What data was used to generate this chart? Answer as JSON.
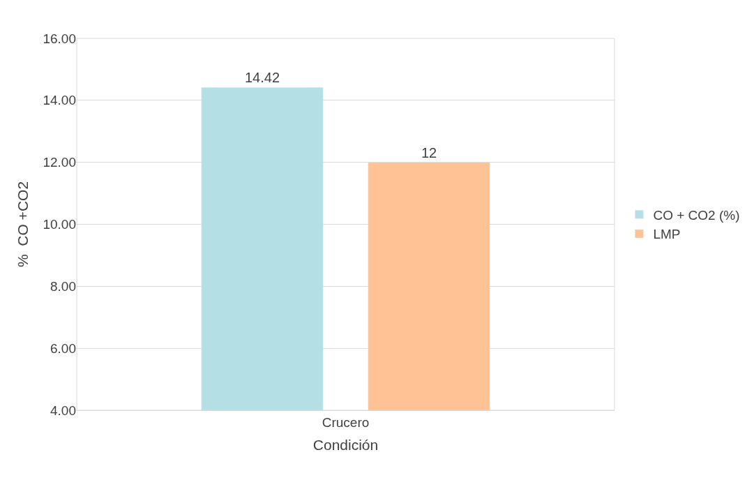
{
  "chart_data": {
    "type": "bar",
    "xlabel": "Condición",
    "ylabel": "%  CO +CO2",
    "categories": [
      "Crucero"
    ],
    "series": [
      {
        "name": "CO + CO2 (%)",
        "color": "#b4e0e5",
        "values": [
          14.42
        ]
      },
      {
        "name": "LMP",
        "color": "#fec294",
        "values": [
          12
        ]
      }
    ],
    "ylim": [
      4,
      16
    ],
    "yticks": [
      {
        "value": 4,
        "label": "4.00"
      },
      {
        "value": 6,
        "label": "6.00"
      },
      {
        "value": 8,
        "label": "8.00"
      },
      {
        "value": 10,
        "label": "10.00"
      },
      {
        "value": 12,
        "label": "12.00"
      },
      {
        "value": 14,
        "label": "14.00"
      },
      {
        "value": 16,
        "label": "16.00"
      }
    ],
    "grid": "y",
    "legend": "right",
    "data_labels": true
  }
}
